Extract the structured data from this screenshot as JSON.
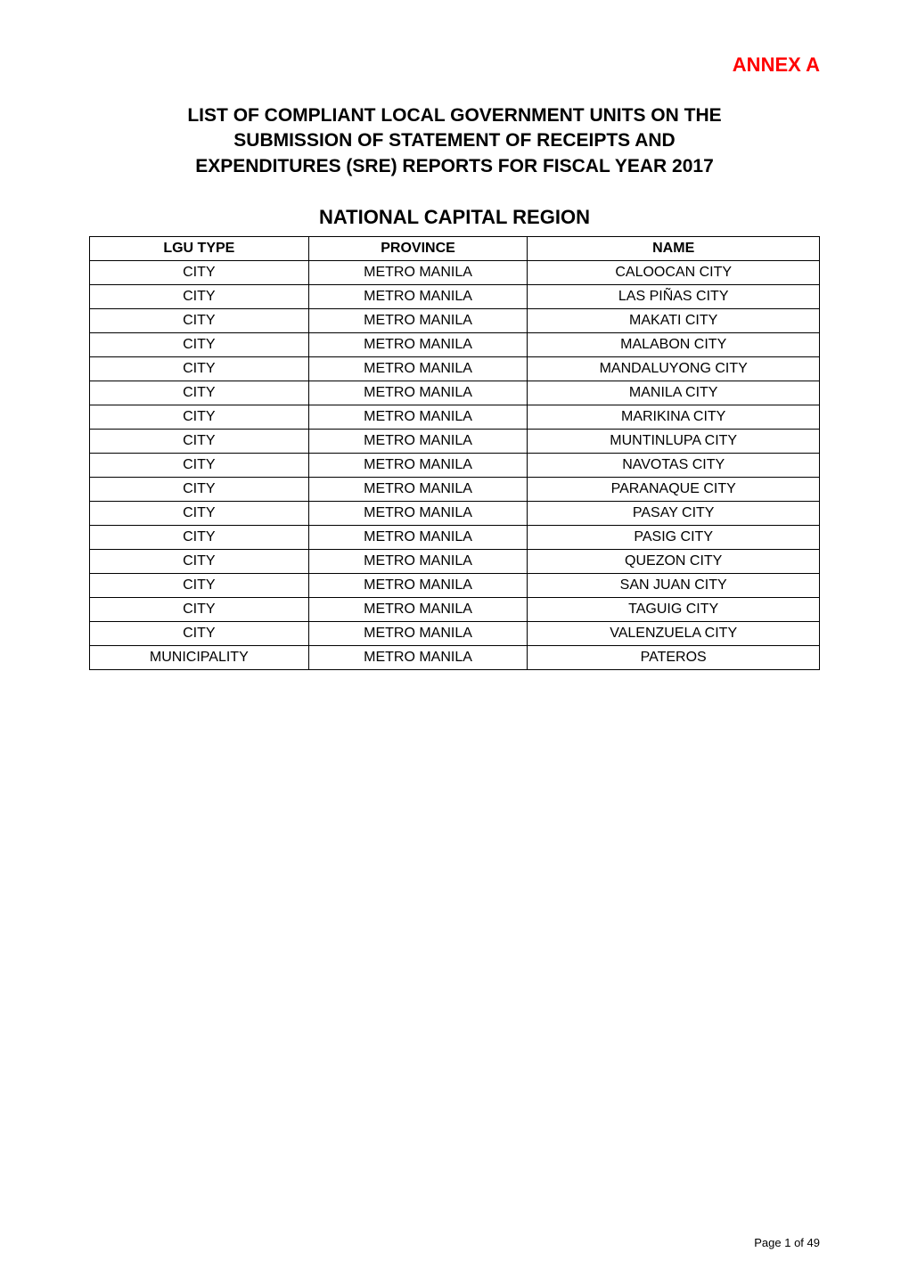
{
  "annex": "ANNEX A",
  "title_line1": "LIST OF COMPLIANT LOCAL GOVERNMENT UNITS ON THE",
  "title_line2": "SUBMISSION OF STATEMENT OF RECEIPTS AND",
  "title_line3": "EXPENDITURES (SRE) REPORTS FOR FISCAL YEAR 2017",
  "region": "NATIONAL CAPITAL REGION",
  "table": {
    "columns": [
      "LGU TYPE",
      "PROVINCE",
      "NAME"
    ],
    "column_widths": [
      "30%",
      "30%",
      "40%"
    ],
    "rows": [
      [
        "CITY",
        "METRO MANILA",
        "CALOOCAN CITY"
      ],
      [
        "CITY",
        "METRO MANILA",
        "LAS PIÑAS CITY"
      ],
      [
        "CITY",
        "METRO MANILA",
        "MAKATI CITY"
      ],
      [
        "CITY",
        "METRO MANILA",
        "MALABON CITY"
      ],
      [
        "CITY",
        "METRO MANILA",
        "MANDALUYONG CITY"
      ],
      [
        "CITY",
        "METRO MANILA",
        "MANILA CITY"
      ],
      [
        "CITY",
        "METRO MANILA",
        "MARIKINA CITY"
      ],
      [
        "CITY",
        "METRO MANILA",
        "MUNTINLUPA CITY"
      ],
      [
        "CITY",
        "METRO MANILA",
        "NAVOTAS CITY"
      ],
      [
        "CITY",
        "METRO MANILA",
        "PARANAQUE CITY"
      ],
      [
        "CITY",
        "METRO MANILA",
        "PASAY CITY"
      ],
      [
        "CITY",
        "METRO MANILA",
        "PASIG CITY"
      ],
      [
        "CITY",
        "METRO MANILA",
        "QUEZON CITY"
      ],
      [
        "CITY",
        "METRO MANILA",
        "SAN JUAN CITY"
      ],
      [
        "CITY",
        "METRO MANILA",
        "TAGUIG CITY"
      ],
      [
        "CITY",
        "METRO MANILA",
        "VALENZUELA CITY"
      ],
      [
        "MUNICIPALITY",
        "METRO MANILA",
        "PATEROS"
      ]
    ]
  },
  "footer": "Page 1 of 49",
  "colors": {
    "annex_color": "#ff0000",
    "text_color": "#000000",
    "border_color": "#000000",
    "background_color": "#ffffff"
  },
  "typography": {
    "body_font": "Arial",
    "annex_fontsize": 22,
    "title_fontsize": 21,
    "region_fontsize": 22,
    "table_fontsize": 16,
    "footer_fontsize": 13
  }
}
